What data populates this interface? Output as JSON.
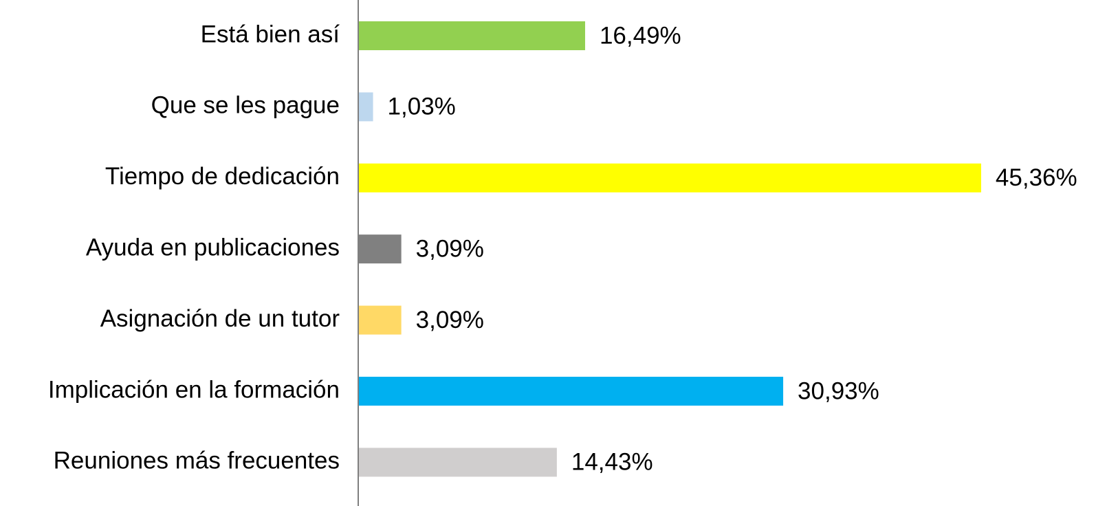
{
  "chart_data": {
    "type": "bar",
    "orientation": "horizontal",
    "categories": [
      "Está bien así",
      "Que se les pague",
      "Tiempo de dedicación",
      "Ayuda en publicaciones",
      "Asignación de un tutor",
      "Implicación en la formación",
      "Reuniones más frecuentes"
    ],
    "values": [
      16.49,
      1.03,
      45.36,
      3.09,
      3.09,
      30.93,
      14.43
    ],
    "value_labels": [
      "16,49%",
      "1,03%",
      "45,36%",
      "3,09%",
      "3,09%",
      "30,93%",
      "14,43%"
    ],
    "colors": [
      "#92d050",
      "#bdd7ee",
      "#ffff00",
      "#808080",
      "#ffd966",
      "#00b0f0",
      "#d0cece"
    ]
  }
}
